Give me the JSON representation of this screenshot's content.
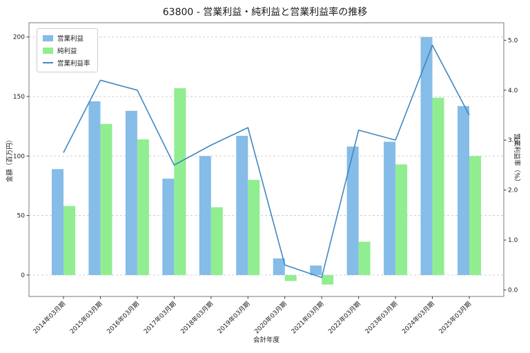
{
  "chart_data": {
    "type": "bar+line",
    "title": "63800 - 営業利益・純利益と営業利益率の推移",
    "xlabel": "会計年度",
    "ylabel_left": "金額（百万円）",
    "ylabel_right": "営業利益率（%）",
    "categories": [
      "2014年03月期",
      "2015年03月期",
      "2016年03月期",
      "2017年03月期",
      "2018年03月期",
      "2019年03月期",
      "2020年03月期",
      "2021年03月期",
      "2022年03月期",
      "2023年03月期",
      "2024年03月期",
      "2025年03月期"
    ],
    "series": [
      {
        "name": "営業利益",
        "type": "bar",
        "axis": "left",
        "color": "#85bce8",
        "values": [
          89,
          146,
          138,
          81,
          100,
          117,
          14,
          8,
          108,
          112,
          200,
          142
        ]
      },
      {
        "name": "純利益",
        "type": "bar",
        "axis": "left",
        "color": "#90ee90",
        "values": [
          58,
          127,
          114,
          157,
          57,
          80,
          -5,
          -8,
          28,
          93,
          149,
          100
        ]
      },
      {
        "name": "営業利益率",
        "type": "line",
        "axis": "right",
        "color": "#3f87c1",
        "values": [
          2.75,
          4.2,
          4.0,
          2.5,
          2.9,
          3.25,
          0.5,
          0.25,
          3.2,
          3.0,
          4.9,
          3.5
        ]
      }
    ],
    "left_ticks": [
      0,
      50,
      100,
      150,
      200
    ],
    "right_ticks": [
      "0.0",
      "1.0",
      "2.0",
      "3.0",
      "4.0",
      "5.0"
    ],
    "ylim_left": [
      -18,
      212
    ],
    "ylim_right": [
      -0.13,
      5.35
    ],
    "grid": {
      "axis": "y",
      "style": "dashed",
      "color": "#c9c9c9"
    },
    "legend_position": "upper-left"
  }
}
